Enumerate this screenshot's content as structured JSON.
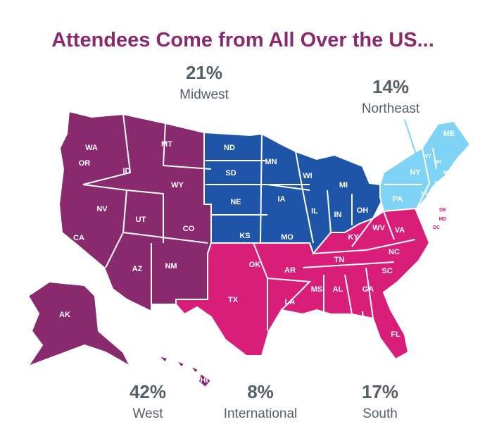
{
  "title": "Attendees Come from All Over the US...",
  "regions": [
    {
      "name": "West",
      "share": "42%",
      "color": "#8a2a6e",
      "states": [
        "WA",
        "OR",
        "ID",
        "MT",
        "WY",
        "NV",
        "UT",
        "CO",
        "CA",
        "AZ",
        "NM",
        "AK",
        "HI"
      ]
    },
    {
      "name": "Midwest",
      "share": "21%",
      "color": "#1f55a8",
      "states": [
        "ND",
        "MN",
        "SD",
        "WI",
        "MI",
        "NE",
        "IA",
        "IL",
        "IN",
        "OH",
        "KS",
        "MO"
      ]
    },
    {
      "name": "Northeast",
      "share": "14%",
      "color": "#7fd4f5",
      "states": [
        "ME",
        "VT",
        "NH",
        "MA",
        "RI",
        "CT",
        "NY",
        "PA",
        "NJ"
      ]
    },
    {
      "name": "South",
      "share": "17%",
      "color": "#d81e78",
      "states": [
        "DE",
        "MD",
        "DC",
        "WV",
        "VA",
        "KY",
        "NC",
        "TN",
        "SC",
        "AR",
        "OK",
        "TX",
        "MS",
        "AL",
        "GA",
        "LA",
        "FL"
      ]
    },
    {
      "name": "International",
      "share": "8%",
      "states": []
    }
  ]
}
